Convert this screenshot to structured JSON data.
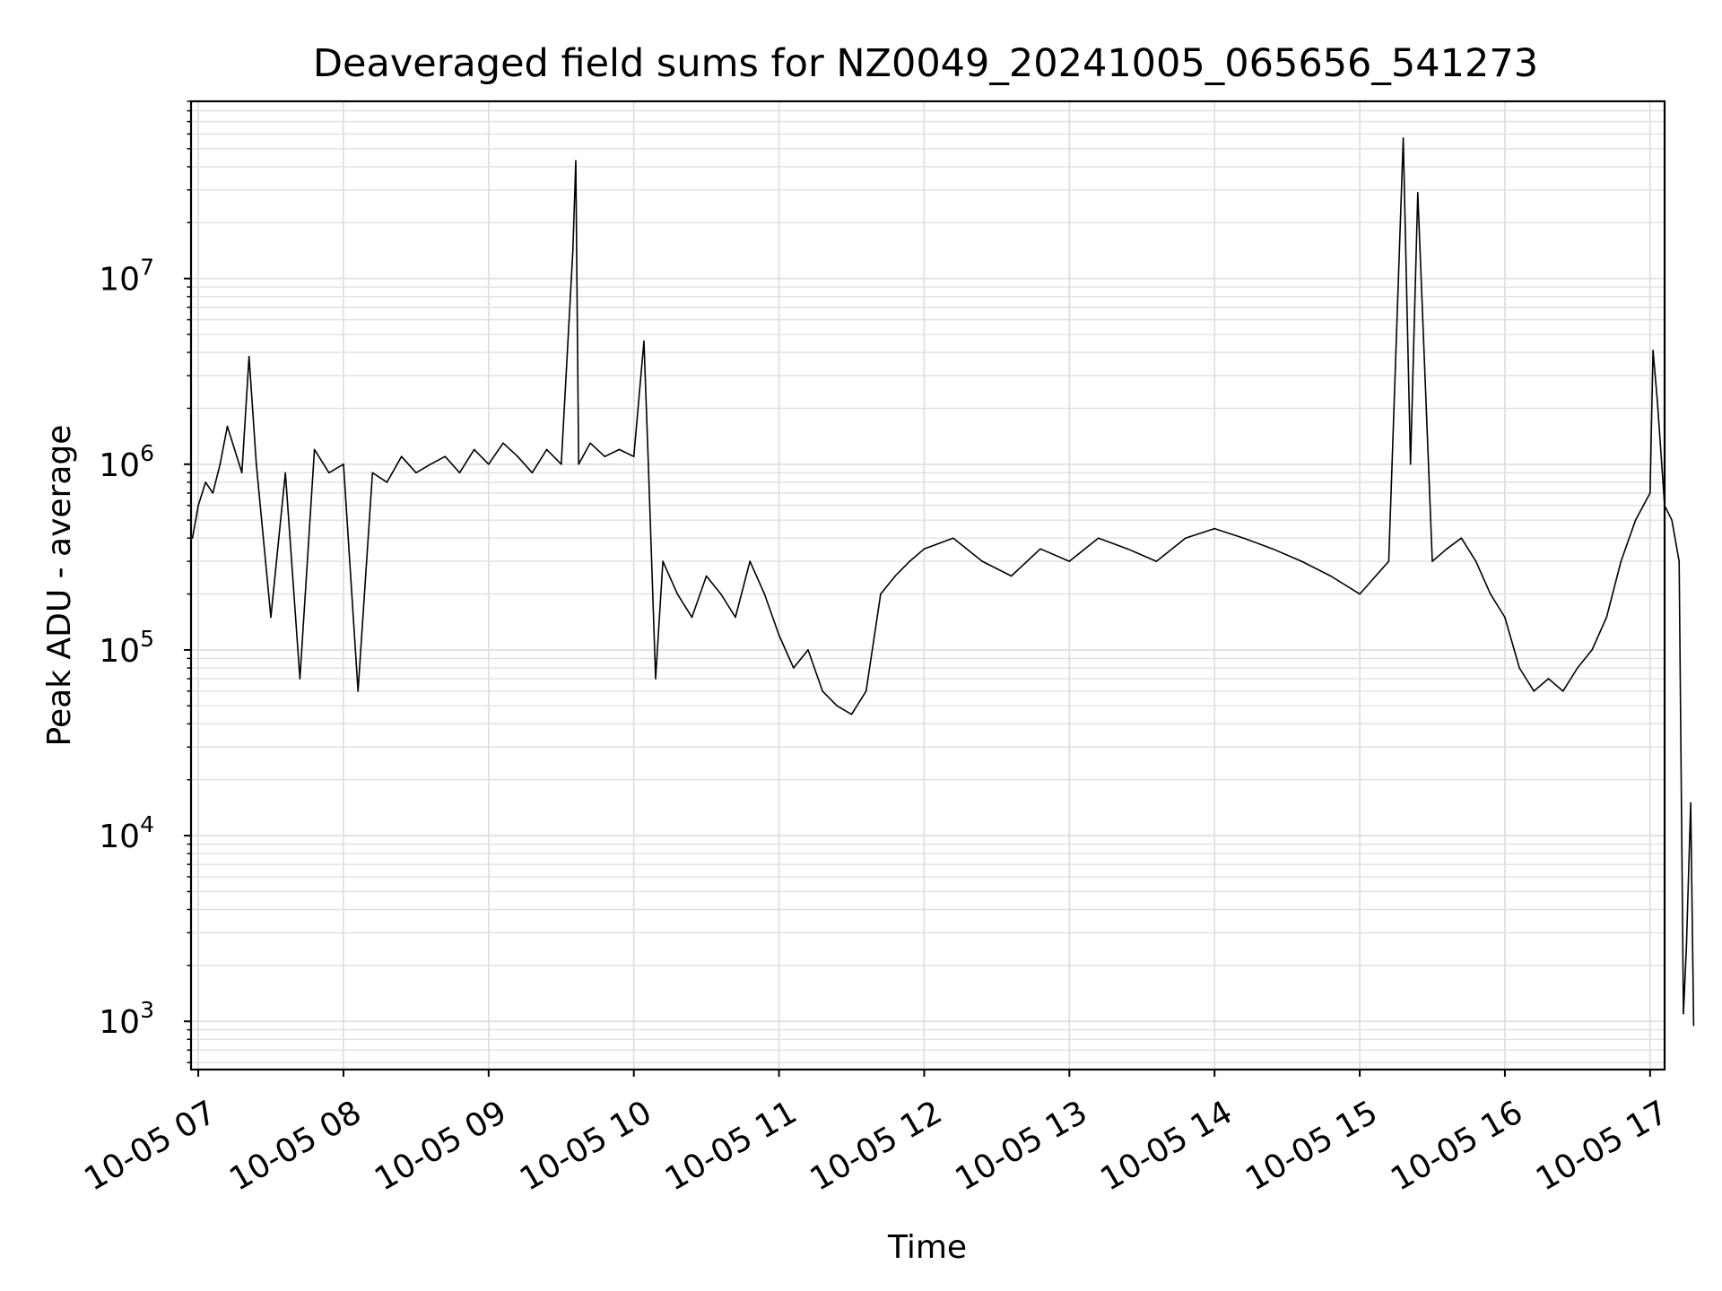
{
  "chart_data": {
    "type": "line",
    "title": "Deaveraged field sums for NZ0049_20241005_065656_541273",
    "xlabel": "Time",
    "ylabel": "Peak ADU - average",
    "yscale": "log",
    "ylim": [
      550,
      90000000
    ],
    "xlim": [
      "10-05 06:57",
      "10-05 17:06"
    ],
    "grid": "both-major-minor",
    "line_color": "#000000",
    "grid_color": "#e0e0e0",
    "x_ticks": [
      "10-05 07",
      "10-05 08",
      "10-05 09",
      "10-05 10",
      "10-05 11",
      "10-05 12",
      "10-05 13",
      "10-05 14",
      "10-05 15",
      "10-05 16",
      "10-05 17"
    ],
    "y_ticks": [
      {
        "base": "10",
        "exp": "3",
        "value": 1000
      },
      {
        "base": "10",
        "exp": "4",
        "value": 10000
      },
      {
        "base": "10",
        "exp": "5",
        "value": 100000
      },
      {
        "base": "10",
        "exp": "6",
        "value": 1000000
      },
      {
        "base": "10",
        "exp": "7",
        "value": 10000000
      }
    ],
    "series": [
      {
        "x_hours": [
          6.96,
          7.0,
          7.05,
          7.1,
          7.15,
          7.2,
          7.25,
          7.3,
          7.35,
          7.4,
          7.5,
          7.6,
          7.7,
          7.8,
          7.9,
          8.0,
          8.1,
          8.2,
          8.3,
          8.4,
          8.5,
          8.6,
          8.7,
          8.8,
          8.9,
          9.0,
          9.1,
          9.2,
          9.3,
          9.4,
          9.5,
          9.58,
          9.6,
          9.62,
          9.7,
          9.8,
          9.9,
          10.0,
          10.07,
          10.1,
          10.15,
          10.2,
          10.3,
          10.4,
          10.5,
          10.6,
          10.7,
          10.8,
          10.9,
          11.0,
          11.1,
          11.2,
          11.3,
          11.4,
          11.5,
          11.6,
          11.7,
          11.8,
          11.9,
          12.0,
          12.2,
          12.4,
          12.6,
          12.8,
          13.0,
          13.2,
          13.4,
          13.6,
          13.8,
          14.0,
          14.2,
          14.4,
          14.6,
          14.8,
          15.0,
          15.2,
          15.3,
          15.35,
          15.4,
          15.5,
          15.6,
          15.7,
          15.8,
          15.9,
          16.0,
          16.1,
          16.2,
          16.3,
          16.4,
          16.5,
          16.6,
          16.7,
          16.8,
          16.9,
          17.0,
          17.02,
          17.05,
          17.1,
          17.15,
          17.2,
          17.23,
          17.25,
          17.28,
          17.3
        ],
        "y": [
          400000,
          600000,
          800000,
          700000,
          1000000,
          1600000,
          1200000,
          900000,
          3800000,
          1000000,
          150000,
          900000,
          70000,
          1200000,
          900000,
          1000000,
          60000,
          900000,
          800000,
          1100000,
          900000,
          1000000,
          1100000,
          900000,
          1200000,
          1000000,
          1300000,
          1100000,
          900000,
          1200000,
          1000000,
          14000000,
          43000000,
          1000000,
          1300000,
          1100000,
          1200000,
          1100000,
          4600000,
          1000000,
          70000,
          300000,
          200000,
          150000,
          250000,
          200000,
          150000,
          300000,
          200000,
          120000,
          80000,
          100000,
          60000,
          50000,
          45000,
          60000,
          200000,
          250000,
          300000,
          350000,
          400000,
          300000,
          250000,
          350000,
          300000,
          400000,
          350000,
          300000,
          400000,
          450000,
          400000,
          350000,
          300000,
          250000,
          200000,
          300000,
          57000000,
          1000000,
          29000000,
          300000,
          350000,
          400000,
          300000,
          200000,
          150000,
          80000,
          60000,
          70000,
          60000,
          80000,
          100000,
          150000,
          300000,
          500000,
          700000,
          4100000,
          2200000,
          600000,
          500000,
          300000,
          1100,
          2500,
          15000,
          950
        ]
      }
    ]
  }
}
